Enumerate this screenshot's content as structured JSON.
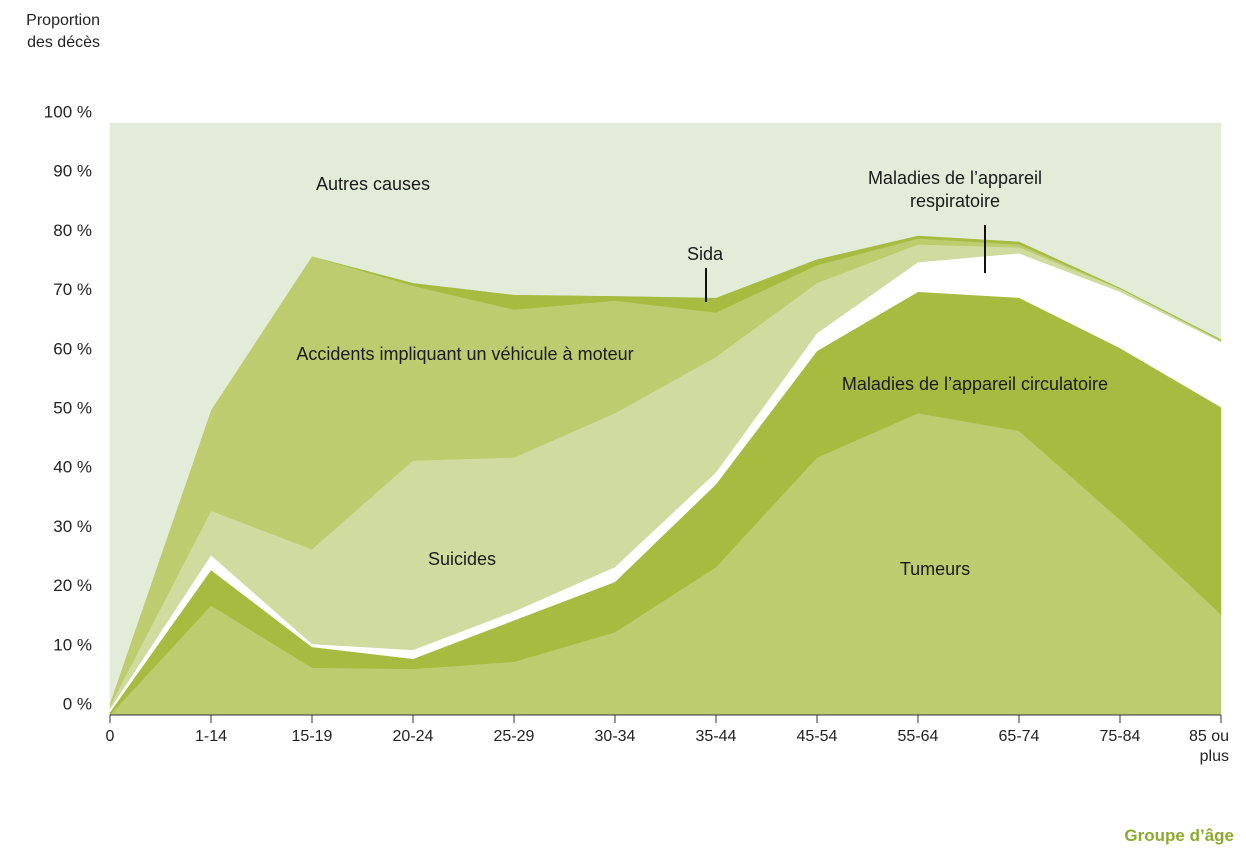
{
  "chart_data": {
    "type": "stacked_area",
    "y_label": "Proportion des décès",
    "x_label": "Groupe d’âge",
    "categories": [
      "0",
      "1-14",
      "15-19",
      "20-24",
      "25-29",
      "30-34",
      "35-44",
      "45-54",
      "55-64",
      "65-74",
      "75-84",
      "85 ou plus"
    ],
    "ylim": [
      0,
      100
    ],
    "yticks": [
      {
        "value": 0,
        "label": "0 %"
      },
      {
        "value": 10,
        "label": "10 %"
      },
      {
        "value": 20,
        "label": "20 %"
      },
      {
        "value": 30,
        "label": "30 %"
      },
      {
        "value": 40,
        "label": "40 %"
      },
      {
        "value": 50,
        "label": "50 %"
      },
      {
        "value": 60,
        "label": "60 %"
      },
      {
        "value": 70,
        "label": "70 %"
      },
      {
        "value": 80,
        "label": "80 %"
      },
      {
        "value": 90,
        "label": "90 %"
      },
      {
        "value": 100,
        "label": "100 %"
      }
    ],
    "series": [
      {
        "name": "Tumeurs",
        "color": "#bdcc6e",
        "values": [
          0,
          18.5,
          8,
          7.8,
          9,
          14,
          25,
          43.5,
          51,
          48,
          33,
          17
        ]
      },
      {
        "name": "Maladies de l’appareil circulatoire",
        "color": "#a6bb40",
        "values": [
          0.5,
          6,
          3.5,
          1.7,
          7,
          8.5,
          14,
          18,
          20.5,
          22.5,
          29,
          35
        ]
      },
      {
        "name": "Maladies de l’appareil respiratoire",
        "color": "#ffffff",
        "values": [
          0.5,
          2.5,
          0.5,
          1.5,
          1.5,
          2.5,
          2,
          3,
          5,
          7.5,
          9.5,
          11
        ]
      },
      {
        "name": "Suicides",
        "color": "#d0dba0",
        "values": [
          0.5,
          7.5,
          16,
          32,
          26,
          26,
          19.5,
          8.5,
          3,
          1,
          0.5,
          0.2
        ]
      },
      {
        "name": "Accidents impliquant un véhicule à moteur",
        "color": "#bdcc6e",
        "values": [
          0.5,
          17,
          49.5,
          29.5,
          25,
          19,
          7.5,
          3,
          1,
          0.5,
          0,
          0.1
        ]
      },
      {
        "name": "Sida",
        "color": "#a6bb40",
        "values": [
          0,
          0,
          0,
          0.5,
          2.5,
          0.8,
          2.5,
          1,
          0.5,
          0.5,
          0.2,
          0.2
        ]
      },
      {
        "name": "Autres causes",
        "color": "#e3ecd9",
        "values": [
          98,
          48.5,
          22.5,
          27,
          29,
          29.2,
          29.5,
          23,
          19,
          20,
          27.8,
          36.5
        ]
      }
    ]
  }
}
